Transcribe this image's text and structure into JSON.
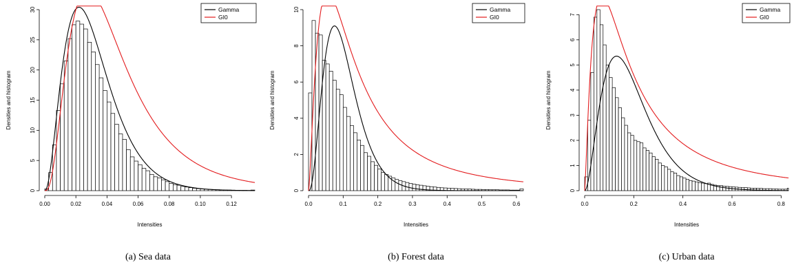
{
  "colors": {
    "gamma": "#000000",
    "gi0": "#e31a1c",
    "bars": "#000000"
  },
  "chart_data": [
    {
      "type": "bar",
      "caption": "(a)  Sea data",
      "xlabel": "Intensities",
      "ylabel": "Densities and histogram",
      "xlim": [
        0,
        0.135
      ],
      "ylim": [
        0,
        30
      ],
      "xticks": [
        0.0,
        0.02,
        0.04,
        0.06,
        0.08,
        0.1,
        0.12
      ],
      "xtick_labels": [
        "0.00",
        "0.02",
        "0.04",
        "0.06",
        "0.08",
        "0.10",
        "0.12"
      ],
      "yticks": [
        0,
        5,
        10,
        15,
        20,
        25,
        30
      ],
      "ytick_labels": [
        "0",
        "5",
        "10",
        "15",
        "20",
        "25",
        "30"
      ],
      "legend": {
        "position": "top-right",
        "entries": [
          "Gamma",
          "GI0"
        ]
      },
      "bin_width": 0.0025,
      "histogram": [
        0.3,
        3.0,
        7.6,
        13.3,
        17.7,
        21.5,
        25.2,
        27.5,
        28.1,
        27.6,
        26.8,
        24.6,
        23.0,
        20.9,
        18.7,
        16.6,
        14.7,
        12.8,
        11.0,
        9.4,
        8.5,
        6.8,
        5.6,
        4.9,
        4.3,
        3.7,
        3.3,
        2.7,
        2.3,
        2.1,
        1.8,
        1.5,
        1.2,
        1.0,
        0.9,
        0.7,
        0.6,
        0.5,
        0.4,
        0.35,
        0.3,
        0.25,
        0.2,
        0.15,
        0.15,
        0.1,
        0.1,
        0.1,
        0.08,
        0.06,
        0.05,
        0.05,
        0.04,
        0.1
      ],
      "series": [
        {
          "name": "Gamma",
          "dist": "gamma",
          "shape": 3.2,
          "mode": 0.022,
          "peak": 30.4
        },
        {
          "name": "GI0",
          "dist": "gi0",
          "shape": 4.0,
          "mode": 0.02,
          "tail": 7.0,
          "peak": 30.0
        }
      ]
    },
    {
      "type": "bar",
      "caption": "(b)  Forest data",
      "xlabel": "Intensities",
      "ylabel": "Densities and histogram",
      "xlim": [
        0,
        0.62
      ],
      "ylim": [
        0,
        10
      ],
      "xticks": [
        0.0,
        0.1,
        0.2,
        0.3,
        0.4,
        0.5,
        0.6
      ],
      "xtick_labels": [
        "0.0",
        "0.1",
        "0.2",
        "0.3",
        "0.4",
        "0.5",
        "0.6"
      ],
      "yticks": [
        0,
        2,
        4,
        6,
        8,
        10
      ],
      "ytick_labels": [
        "0",
        "2",
        "4",
        "6",
        "8",
        "10"
      ],
      "legend": {
        "position": "top-right",
        "entries": [
          "Gamma",
          "GI0"
        ]
      },
      "bin_width": 0.01,
      "histogram": [
        5.4,
        9.4,
        8.7,
        8.6,
        7.2,
        7.0,
        6.6,
        6.1,
        5.6,
        5.3,
        4.6,
        4.1,
        3.6,
        3.2,
        2.8,
        2.5,
        2.1,
        1.9,
        1.6,
        1.4,
        1.2,
        1.0,
        0.9,
        0.8,
        0.7,
        0.62,
        0.55,
        0.5,
        0.45,
        0.4,
        0.36,
        0.32,
        0.3,
        0.27,
        0.24,
        0.22,
        0.2,
        0.18,
        0.16,
        0.15,
        0.14,
        0.13,
        0.12,
        0.11,
        0.1,
        0.09,
        0.09,
        0.08,
        0.07,
        0.07,
        0.06,
        0.06,
        0.05,
        0.05,
        0.05,
        0.04,
        0.04,
        0.04,
        0.03,
        0.03,
        0.03,
        0.1
      ],
      "series": [
        {
          "name": "Gamma",
          "dist": "gamma",
          "shape": 3.6,
          "mode": 0.075,
          "peak": 9.1
        },
        {
          "name": "GI0",
          "dist": "gi0",
          "shape": 2.6,
          "mode": 0.036,
          "tail": 2.0,
          "peak": 10.0
        }
      ]
    },
    {
      "type": "bar",
      "caption": "(c)  Urban data",
      "xlabel": "Intensities",
      "ylabel": "Densities and histogram",
      "xlim": [
        0,
        0.83
      ],
      "ylim": [
        0,
        7.2
      ],
      "xticks": [
        0.0,
        0.2,
        0.4,
        0.6,
        0.8
      ],
      "xtick_labels": [
        "0.0",
        "0.2",
        "0.4",
        "0.6",
        "0.8"
      ],
      "yticks": [
        0,
        1,
        2,
        3,
        4,
        5,
        6,
        7
      ],
      "ytick_labels": [
        "0",
        "1",
        "2",
        "3",
        "4",
        "5",
        "6",
        "7"
      ],
      "legend": {
        "position": "top-right",
        "entries": [
          "Gamma",
          "GI0"
        ]
      },
      "bin_width": 0.0125,
      "histogram": [
        0.55,
        2.8,
        4.7,
        6.9,
        7.2,
        6.6,
        5.8,
        5.0,
        4.5,
        4.1,
        3.7,
        3.3,
        2.9,
        2.6,
        2.3,
        2.2,
        2.0,
        1.95,
        1.9,
        1.7,
        1.6,
        1.5,
        1.35,
        1.25,
        1.1,
        1.0,
        0.95,
        0.85,
        0.75,
        0.7,
        0.6,
        0.55,
        0.5,
        0.45,
        0.4,
        0.38,
        0.35,
        0.32,
        0.3,
        0.28,
        0.3,
        0.25,
        0.22,
        0.2,
        0.2,
        0.18,
        0.17,
        0.16,
        0.15,
        0.14,
        0.13,
        0.12,
        0.12,
        0.11,
        0.1,
        0.1,
        0.09,
        0.09,
        0.08,
        0.08,
        0.08,
        0.07,
        0.07,
        0.06,
        0.06,
        0.06,
        0.1
      ],
      "series": [
        {
          "name": "Gamma",
          "dist": "gamma",
          "shape": 3.0,
          "mode": 0.13,
          "peak": 5.35
        },
        {
          "name": "GI0",
          "dist": "gi0",
          "shape": 2.4,
          "mode": 0.045,
          "tail": 1.5,
          "peak": 7.1
        }
      ]
    }
  ]
}
